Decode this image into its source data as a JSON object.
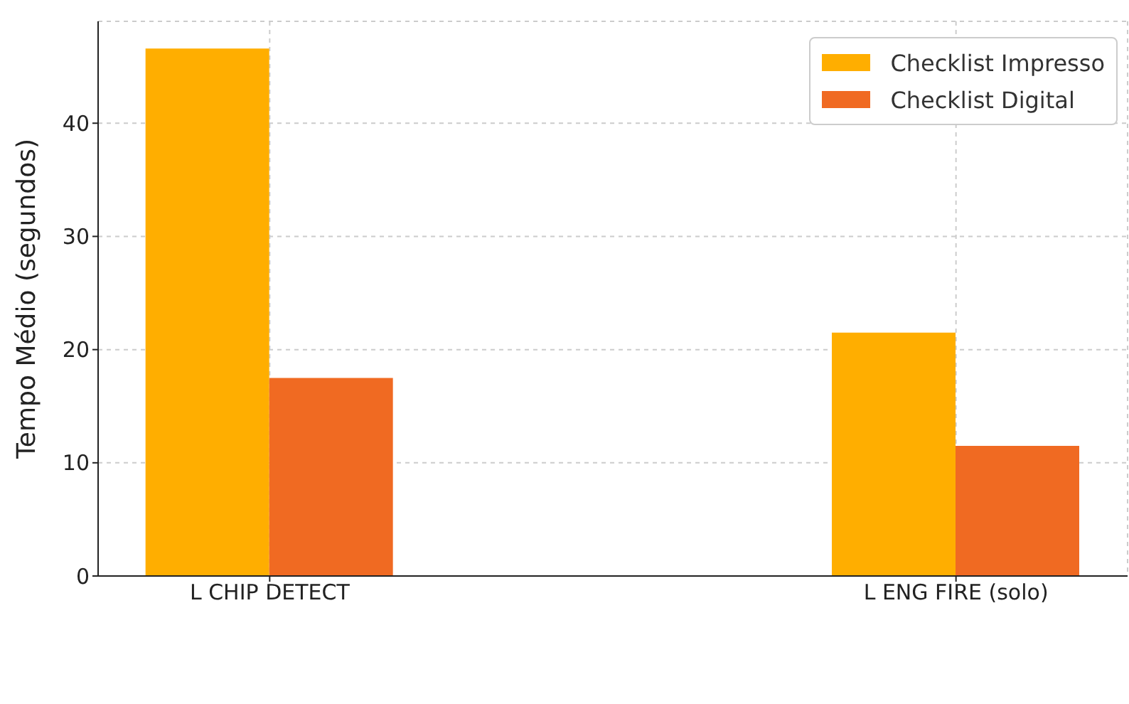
{
  "chart_data": {
    "type": "bar",
    "ylabel": "Tempo Médio (segundos)",
    "categories": [
      "L CHIP DETECT",
      "L ENG FIRE (solo)"
    ],
    "series": [
      {
        "name": "Checklist Impresso",
        "color": "#ffae00",
        "values": [
          46.6,
          21.5
        ]
      },
      {
        "name": "Checklist Digital",
        "color": "#f06a22",
        "values": [
          17.5,
          11.5
        ]
      }
    ],
    "ylim": [
      0,
      49
    ],
    "yticks": [
      0,
      10,
      20,
      30,
      40
    ],
    "grid": true,
    "legend": "top right"
  }
}
